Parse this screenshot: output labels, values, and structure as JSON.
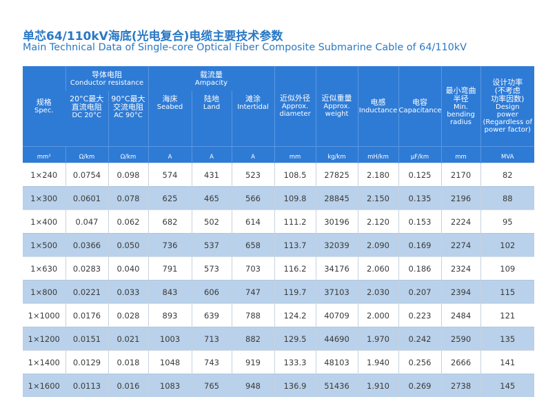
{
  "title_cn": "单芯64/110kV海底(光电复合)电缆主要技术参数",
  "title_en": "Main Technical Data of Single-core Optical Fiber Composite Submarine Cable of 64/110kV",
  "header": {
    "spec": {
      "cn": "规格",
      "en": "Spec."
    },
    "conductor": {
      "cn": "导体电阻",
      "en": "Conductor resistance"
    },
    "dc": {
      "cn1": "20°C最大",
      "cn2": "直流电阻",
      "en": "DC 20°C"
    },
    "ac": {
      "cn1": "90°C最大",
      "cn2": "交流电阻",
      "en": "AC 90°C"
    },
    "ampacity": {
      "cn": "载流量",
      "en": "Ampacity"
    },
    "seabed": {
      "cn": "海床",
      "en": "Seabed"
    },
    "land": {
      "cn": "陆地",
      "en": "Land"
    },
    "intertidal": {
      "cn": "滩涂",
      "en": "Intertidal"
    },
    "diameter": {
      "cn": "近似外径",
      "en1": "Approx.",
      "en2": "diameter"
    },
    "weight": {
      "cn": "近似重量",
      "en1": "Approx.",
      "en2": "weight"
    },
    "inductance": {
      "cn": "电感",
      "en": "Inductance"
    },
    "capacitance": {
      "cn": "电容",
      "en": "Capacitance"
    },
    "bending": {
      "cn1": "最小弯曲",
      "cn2": "半径",
      "en1": "Min.",
      "en2": "bending",
      "en3": "radius"
    },
    "power": {
      "cn1": "设计功率",
      "cn2": "(不考虑",
      "cn3": "功率因数)",
      "en1": "Design",
      "en2": "power",
      "en3": "(Regardless of",
      "en4": "power factor)"
    }
  },
  "units": [
    "mm²",
    "Ω/km",
    "Ω/km",
    "A",
    "A",
    "A",
    "mm",
    "kg/km",
    "mH/km",
    "μF/km",
    "mm",
    "MVA"
  ],
  "rows": [
    [
      "1×240",
      "0.0754",
      "0.098",
      "574",
      "431",
      "523",
      "108.5",
      "27825",
      "2.180",
      "0.125",
      "2170",
      "82"
    ],
    [
      "1×300",
      "0.0601",
      "0.078",
      "625",
      "465",
      "566",
      "109.8",
      "28845",
      "2.150",
      "0.135",
      "2196",
      "88"
    ],
    [
      "1×400",
      "0.047",
      "0.062",
      "682",
      "502",
      "614",
      "111.2",
      "30196",
      "2.120",
      "0.153",
      "2224",
      "95"
    ],
    [
      "1×500",
      "0.0366",
      "0.050",
      "736",
      "537",
      "658",
      "113.7",
      "32039",
      "2.090",
      "0.169",
      "2274",
      "102"
    ],
    [
      "1×630",
      "0.0283",
      "0.040",
      "791",
      "573",
      "703",
      "116.2",
      "34176",
      "2.060",
      "0.186",
      "2324",
      "109"
    ],
    [
      "1×800",
      "0.0221",
      "0.033",
      "843",
      "606",
      "747",
      "119.7",
      "37103",
      "2.030",
      "0.207",
      "2394",
      "115"
    ],
    [
      "1×1000",
      "0.0176",
      "0.028",
      "893",
      "639",
      "788",
      "124.2",
      "40709",
      "2.000",
      "0.223",
      "2484",
      "121"
    ],
    [
      "1×1200",
      "0.0151",
      "0.021",
      "1003",
      "713",
      "882",
      "129.5",
      "44690",
      "1.970",
      "0.242",
      "2590",
      "135"
    ],
    [
      "1×1400",
      "0.0129",
      "0.018",
      "1048",
      "743",
      "919",
      "133.3",
      "48103",
      "1.940",
      "0.256",
      "2666",
      "141"
    ],
    [
      "1×1600",
      "0.0113",
      "0.016",
      "1083",
      "765",
      "948",
      "136.9",
      "51436",
      "1.910",
      "0.269",
      "2738",
      "145"
    ]
  ],
  "colors": {
    "header_bg": "#2e7bd6",
    "title": "#2a78c4",
    "alt_row": "#b9d1ea"
  }
}
